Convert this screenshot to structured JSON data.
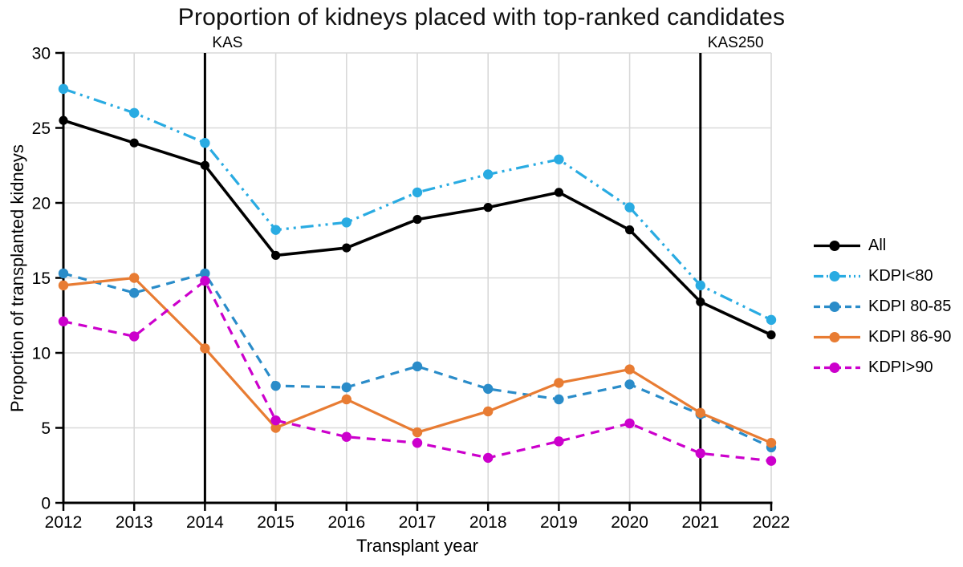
{
  "title": "Proportion of kidneys placed with top-ranked candidates",
  "chart_data": {
    "type": "line",
    "x": [
      2012,
      2013,
      2014,
      2015,
      2016,
      2017,
      2018,
      2019,
      2020,
      2021,
      2022
    ],
    "xlabel": "Transplant year",
    "ylabel": "Proportion of transplanted kidneys",
    "ylim": [
      0,
      30
    ],
    "yticks": [
      0,
      5,
      10,
      15,
      20,
      25,
      30
    ],
    "grid": true,
    "legend_position": "right",
    "grid_color": "#d9d9d9",
    "axis_color": "#000000",
    "annotations": [
      {
        "label": "KAS",
        "x": 2014
      },
      {
        "label": "KAS250",
        "x": 2021
      }
    ],
    "series": [
      {
        "name": "All",
        "color": "#000000",
        "dash": "solid",
        "values": [
          25.5,
          24.0,
          22.5,
          16.5,
          17.0,
          18.9,
          19.7,
          20.7,
          18.2,
          13.4,
          11.2
        ]
      },
      {
        "name": "KDPI<80",
        "color": "#29abe2",
        "dash": "dash-dot-dot",
        "values": [
          27.6,
          26.0,
          24.0,
          18.2,
          18.7,
          20.7,
          21.9,
          22.9,
          19.7,
          14.5,
          12.2
        ]
      },
      {
        "name": "KDPI 80-85",
        "color": "#2a8cc9",
        "dash": "dashed",
        "values": [
          15.3,
          14.0,
          15.3,
          7.8,
          7.7,
          9.1,
          7.6,
          6.9,
          7.9,
          5.9,
          3.7
        ]
      },
      {
        "name": "KDPI 86-90",
        "color": "#e87c33",
        "dash": "solid",
        "values": [
          14.5,
          15.0,
          10.3,
          5.0,
          6.9,
          4.7,
          6.1,
          8.0,
          8.9,
          6.0,
          4.0
        ]
      },
      {
        "name": "KDPI>90",
        "color": "#cc00cc",
        "dash": "dashed",
        "values": [
          12.1,
          11.1,
          14.8,
          5.5,
          4.4,
          4.0,
          3.0,
          4.1,
          5.3,
          3.3,
          2.8
        ]
      }
    ]
  }
}
